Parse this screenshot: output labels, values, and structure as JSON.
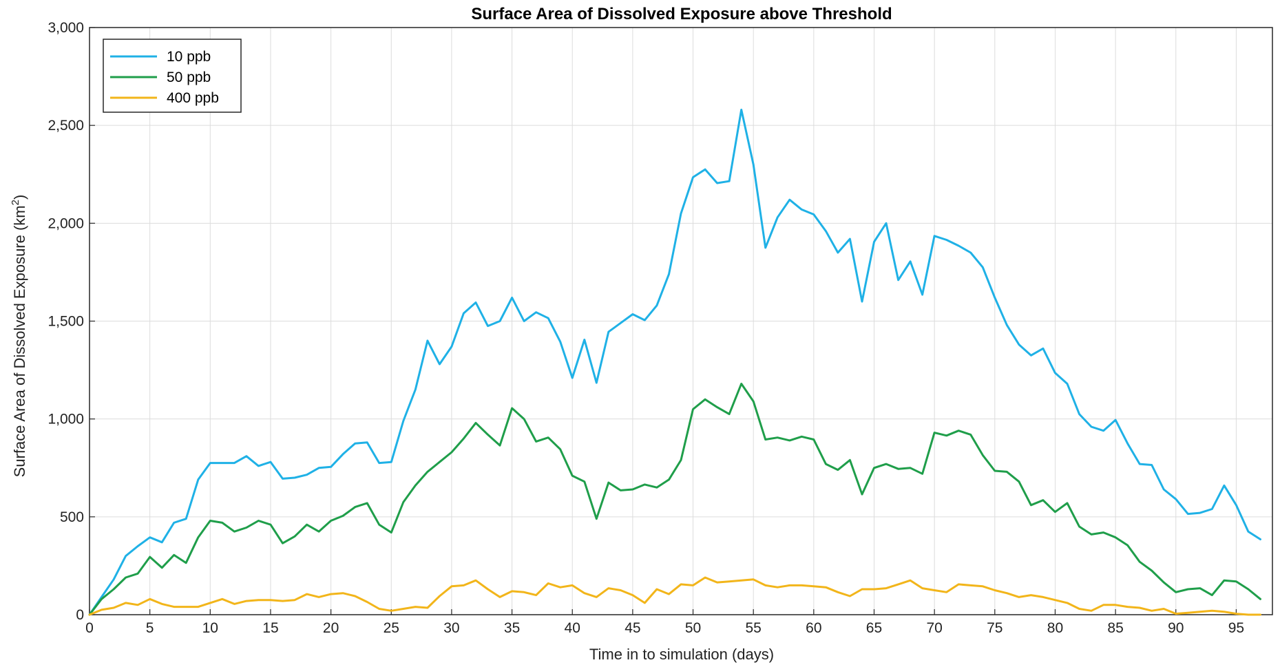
{
  "chart_data": {
    "type": "line",
    "title": "Surface Area of Dissolved Exposure above Threshold",
    "xlabel": "Time in to simulation (days)",
    "ylabel_main": "Surface Area of Dissolved Exposure (km",
    "ylabel_sup": "2",
    "ylabel_tail": ")",
    "xlim": [
      0,
      98
    ],
    "ylim": [
      0,
      3000
    ],
    "xticks": [
      0,
      5,
      10,
      15,
      20,
      25,
      30,
      35,
      40,
      45,
      50,
      55,
      60,
      65,
      70,
      75,
      80,
      85,
      90,
      95
    ],
    "xtick_labels": [
      "0",
      "5",
      "10",
      "15",
      "20",
      "25",
      "30",
      "35",
      "40",
      "45",
      "50",
      "55",
      "60",
      "65",
      "70",
      "75",
      "80",
      "85",
      "90",
      "95"
    ],
    "yticks": [
      0,
      500,
      1000,
      1500,
      2000,
      2500,
      3000
    ],
    "ytick_labels": [
      "0",
      "500",
      "1,000",
      "1,500",
      "2,000",
      "2,500",
      "3,000"
    ],
    "grid": true,
    "legend_position": "top-left",
    "series": [
      {
        "name": "10 ppb",
        "color": "#1fb1e6",
        "values": [
          0,
          90,
          180,
          300,
          350,
          395,
          370,
          470,
          490,
          690,
          775,
          775,
          775,
          810,
          760,
          780,
          695,
          700,
          715,
          750,
          755,
          820,
          875,
          880,
          775,
          780,
          990,
          1150,
          1400,
          1280,
          1370,
          1540,
          1595,
          1475,
          1500,
          1620,
          1500,
          1545,
          1515,
          1395,
          1210,
          1405,
          1185,
          1445,
          1490,
          1535,
          1505,
          1580,
          1740,
          2050,
          2235,
          2275,
          2205,
          2215,
          2580,
          2300,
          1875,
          2030,
          2120,
          2070,
          2045,
          1960,
          1850,
          1920,
          1600,
          1905,
          2000,
          1710,
          1805,
          1635,
          1935,
          1915,
          1885,
          1850,
          1775,
          1620,
          1480,
          1380,
          1325,
          1360,
          1235,
          1180,
          1025,
          960,
          940,
          995,
          875,
          770,
          765,
          640,
          590,
          515,
          520,
          540,
          660,
          560,
          425,
          385
        ]
      },
      {
        "name": "50 ppb",
        "color": "#1f9e4a",
        "values": [
          0,
          80,
          130,
          190,
          210,
          295,
          240,
          305,
          265,
          395,
          480,
          470,
          425,
          445,
          480,
          460,
          365,
          400,
          460,
          425,
          480,
          505,
          550,
          570,
          460,
          420,
          575,
          660,
          730,
          780,
          830,
          900,
          980,
          920,
          865,
          1055,
          1000,
          885,
          905,
          845,
          710,
          680,
          490,
          675,
          635,
          640,
          665,
          650,
          690,
          790,
          1050,
          1100,
          1060,
          1025,
          1180,
          1090,
          895,
          905,
          890,
          910,
          895,
          770,
          740,
          790,
          615,
          750,
          770,
          745,
          750,
          720,
          930,
          915,
          940,
          920,
          815,
          735,
          730,
          680,
          560,
          585,
          525,
          570,
          450,
          410,
          420,
          395,
          355,
          270,
          225,
          165,
          115,
          130,
          135,
          100,
          175,
          170,
          130,
          80
        ]
      },
      {
        "name": "400 ppb",
        "color": "#f2b51a",
        "values": [
          0,
          25,
          35,
          60,
          50,
          80,
          55,
          40,
          40,
          40,
          60,
          80,
          55,
          70,
          75,
          75,
          70,
          75,
          105,
          90,
          105,
          110,
          95,
          65,
          30,
          20,
          30,
          40,
          35,
          95,
          145,
          150,
          175,
          130,
          90,
          120,
          115,
          100,
          160,
          140,
          150,
          110,
          90,
          135,
          125,
          100,
          60,
          130,
          105,
          155,
          150,
          190,
          165,
          170,
          175,
          180,
          150,
          140,
          150,
          150,
          145,
          140,
          115,
          95,
          130,
          130,
          135,
          155,
          175,
          135,
          125,
          115,
          155,
          150,
          145,
          125,
          110,
          90,
          100,
          90,
          75,
          60,
          30,
          20,
          50,
          50,
          40,
          35,
          20,
          30,
          5,
          10,
          15,
          20,
          15,
          5,
          0,
          0
        ]
      }
    ]
  }
}
